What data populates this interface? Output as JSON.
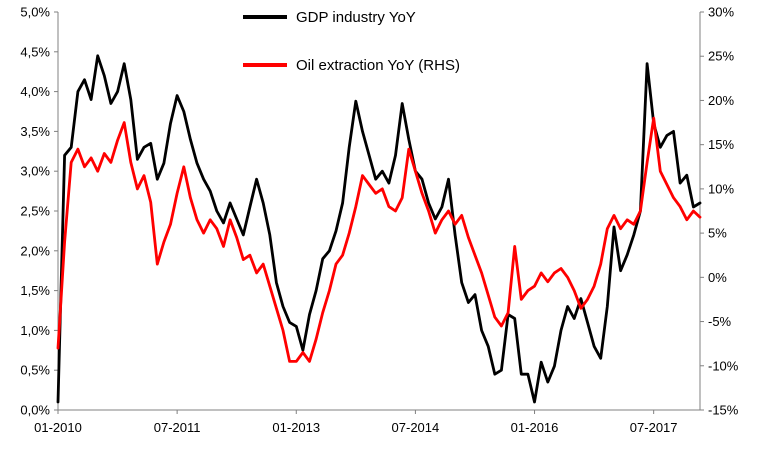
{
  "chart_data": {
    "type": "line",
    "title": "",
    "grid": false,
    "legend_position": "top-center-inside",
    "x_start": "01-2010",
    "x_frequency": "monthly",
    "x_tick_labels": [
      "01-2010",
      "07-2011",
      "01-2013",
      "07-2014",
      "01-2016",
      "07-2017"
    ],
    "x_tick_indices": [
      0,
      18,
      36,
      54,
      72,
      90
    ],
    "left_axis": {
      "min": 0,
      "max": 5,
      "step": 0.5,
      "tick_labels": [
        "0,0%",
        "0,5%",
        "1,0%",
        "1,5%",
        "2,0%",
        "2,5%",
        "3,0%",
        "3,5%",
        "4,0%",
        "4,5%",
        "5,0%"
      ]
    },
    "right_axis": {
      "min": -15,
      "max": 30,
      "step": 5,
      "tick_labels": [
        "-15%",
        "-10%",
        "-5%",
        "0%",
        "5%",
        "10%",
        "15%",
        "20%",
        "25%",
        "30%"
      ]
    },
    "series": [
      {
        "name": "GDP industry YoY",
        "axis": "left",
        "color": "#000000",
        "values": [
          0.1,
          3.2,
          3.3,
          4.0,
          4.15,
          3.9,
          4.45,
          4.2,
          3.85,
          4.0,
          4.35,
          3.9,
          3.15,
          3.3,
          3.35,
          2.9,
          3.1,
          3.6,
          3.95,
          3.75,
          3.4,
          3.1,
          2.9,
          2.75,
          2.5,
          2.35,
          2.6,
          2.4,
          2.2,
          2.55,
          2.9,
          2.6,
          2.2,
          1.6,
          1.3,
          1.1,
          1.05,
          0.75,
          1.2,
          1.5,
          1.9,
          2.0,
          2.25,
          2.6,
          3.3,
          3.88,
          3.5,
          3.2,
          2.9,
          3.0,
          2.85,
          3.2,
          3.85,
          3.4,
          3.0,
          2.9,
          2.6,
          2.4,
          2.55,
          2.9,
          2.2,
          1.6,
          1.35,
          1.45,
          1.0,
          0.8,
          0.45,
          0.5,
          1.2,
          1.15,
          0.45,
          0.45,
          0.1,
          0.6,
          0.35,
          0.55,
          1.0,
          1.3,
          1.15,
          1.4,
          1.1,
          0.8,
          0.65,
          1.3,
          2.3,
          1.75,
          1.95,
          2.2,
          2.5,
          4.35,
          3.6,
          3.3,
          3.45,
          3.5,
          2.85,
          2.95,
          2.55,
          2.6
        ]
      },
      {
        "name": "Oil extraction YoY (RHS)",
        "axis": "right",
        "color": "#ff0000",
        "values": [
          -8,
          4,
          13,
          14.5,
          12.5,
          13.5,
          12,
          14,
          13,
          15.5,
          17.5,
          13,
          10,
          11.5,
          8.5,
          1.5,
          4,
          6,
          9.5,
          12.5,
          9,
          6.5,
          5,
          6.5,
          5.5,
          3.5,
          6.5,
          4.5,
          2,
          2.5,
          0.5,
          1.5,
          -1,
          -3.5,
          -6,
          -9.5,
          -9.5,
          -8.5,
          -9.5,
          -7,
          -4,
          -1.5,
          1.5,
          2.5,
          5,
          8,
          11.5,
          10.5,
          9.5,
          10,
          8,
          7.5,
          9,
          14.5,
          12,
          9.5,
          7.5,
          5,
          6.5,
          7.5,
          6,
          7,
          4.5,
          2.5,
          0.5,
          -2,
          -4.5,
          -5.5,
          -4,
          3.5,
          -2.5,
          -1.5,
          -1,
          0.5,
          -0.5,
          0.5,
          1,
          0,
          -1.5,
          -3.5,
          -2.5,
          -1,
          1.5,
          5.5,
          7,
          5.5,
          6.5,
          6,
          7.5,
          13,
          18,
          12,
          10.5,
          9,
          8,
          6.5,
          7.5,
          6.8
        ]
      }
    ],
    "axis_line_color": "#808080"
  }
}
